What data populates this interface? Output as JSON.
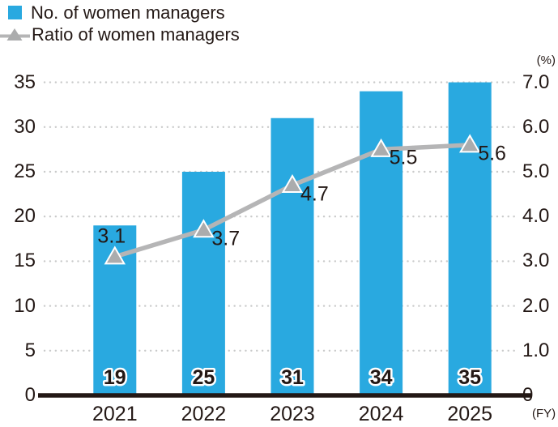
{
  "legend": {
    "items": [
      {
        "label": "No. of women managers",
        "swatch": "square",
        "color": "#29A9E0"
      },
      {
        "label": "Ratio of women managers",
        "swatch": "triangle-line",
        "color": "#ABACAD"
      }
    ]
  },
  "chart_data": {
    "type": "bar+line combo",
    "categories": [
      "2021",
      "2022",
      "2023",
      "2024",
      "2025"
    ],
    "series": [
      {
        "name": "No. of women managers",
        "type": "bar",
        "axis": "left",
        "color": "#29A9E0",
        "values": [
          19,
          25,
          31,
          34,
          35
        ],
        "data_labels": [
          "19",
          "25",
          "31",
          "34",
          "35"
        ]
      },
      {
        "name": "Ratio of women managers",
        "type": "line",
        "axis": "right",
        "color": "#B5B5B6",
        "marker": "triangle",
        "marker_color": "#ABACAD",
        "values": [
          3.1,
          3.7,
          4.7,
          5.5,
          5.6
        ],
        "data_labels": [
          "3.1",
          "3.7",
          "4.7",
          "5.5",
          "5.6"
        ]
      }
    ],
    "axes": {
      "left": {
        "ticks": [
          "0",
          "5",
          "10",
          "15",
          "20",
          "25",
          "30",
          "35"
        ],
        "min": 0,
        "max": 35,
        "unit": ""
      },
      "right": {
        "ticks": [
          "0",
          "1.0",
          "2.0",
          "3.0",
          "4.0",
          "5.0",
          "6.0",
          "7.0"
        ],
        "min": 0,
        "max": 7,
        "unit": "(%)"
      },
      "x": {
        "unit": "(FY)"
      }
    },
    "grid": {
      "horizontal": "dotted",
      "color": "#C9CACA"
    },
    "colors": {
      "axis_line": "#231815",
      "text": "#231815",
      "bar_label_outline": "#FFFFFF"
    }
  }
}
